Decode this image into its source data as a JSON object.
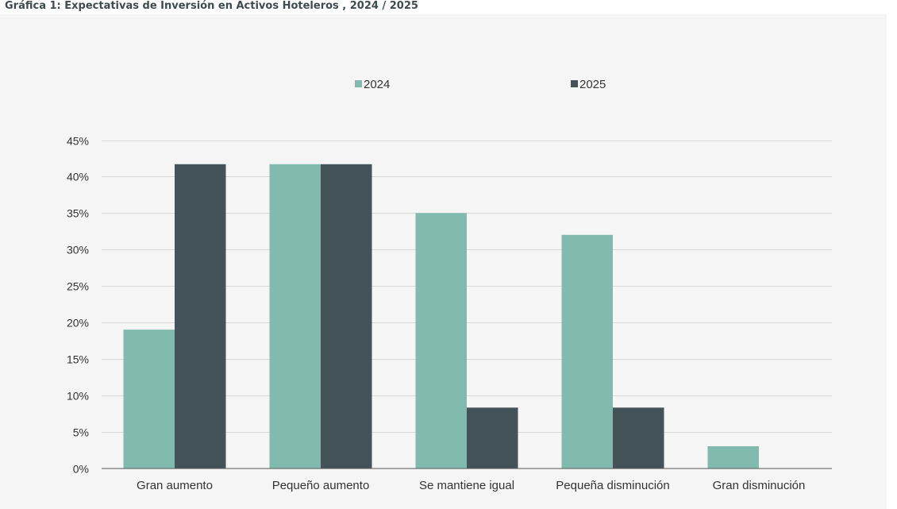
{
  "chart_data": {
    "type": "bar",
    "title": "Gráfica 1: Expectativas de Inversión en Activos Hoteleros , 2024 / 2025",
    "xlabel": "",
    "ylabel": "",
    "categories": [
      "Gran aumento",
      "Pequeño aumento",
      "Se mantiene igual",
      "Pequeña disminución",
      "Gran disminución"
    ],
    "series": [
      {
        "name": "2024",
        "color": "#80bbad",
        "values": [
          19,
          41.7,
          35,
          32,
          3
        ]
      },
      {
        "name": "2025",
        "color": "#435357",
        "values": [
          41.7,
          41.7,
          8.3,
          8.3,
          0
        ]
      }
    ],
    "ylim": [
      0,
      45
    ],
    "yticks": [
      0,
      5,
      10,
      15,
      20,
      25,
      30,
      35,
      40,
      45
    ],
    "ytick_labels": [
      "0%",
      "5%",
      "10%",
      "15%",
      "20%",
      "25%",
      "30%",
      "35%",
      "40%",
      "45%"
    ],
    "grid": true,
    "legend_position": "top-center",
    "colors": {
      "background": "#f5f5f5",
      "gridline": "#d9d9d9",
      "axis": "#595959",
      "text": "#333333",
      "title": "#3d4a4e"
    }
  }
}
